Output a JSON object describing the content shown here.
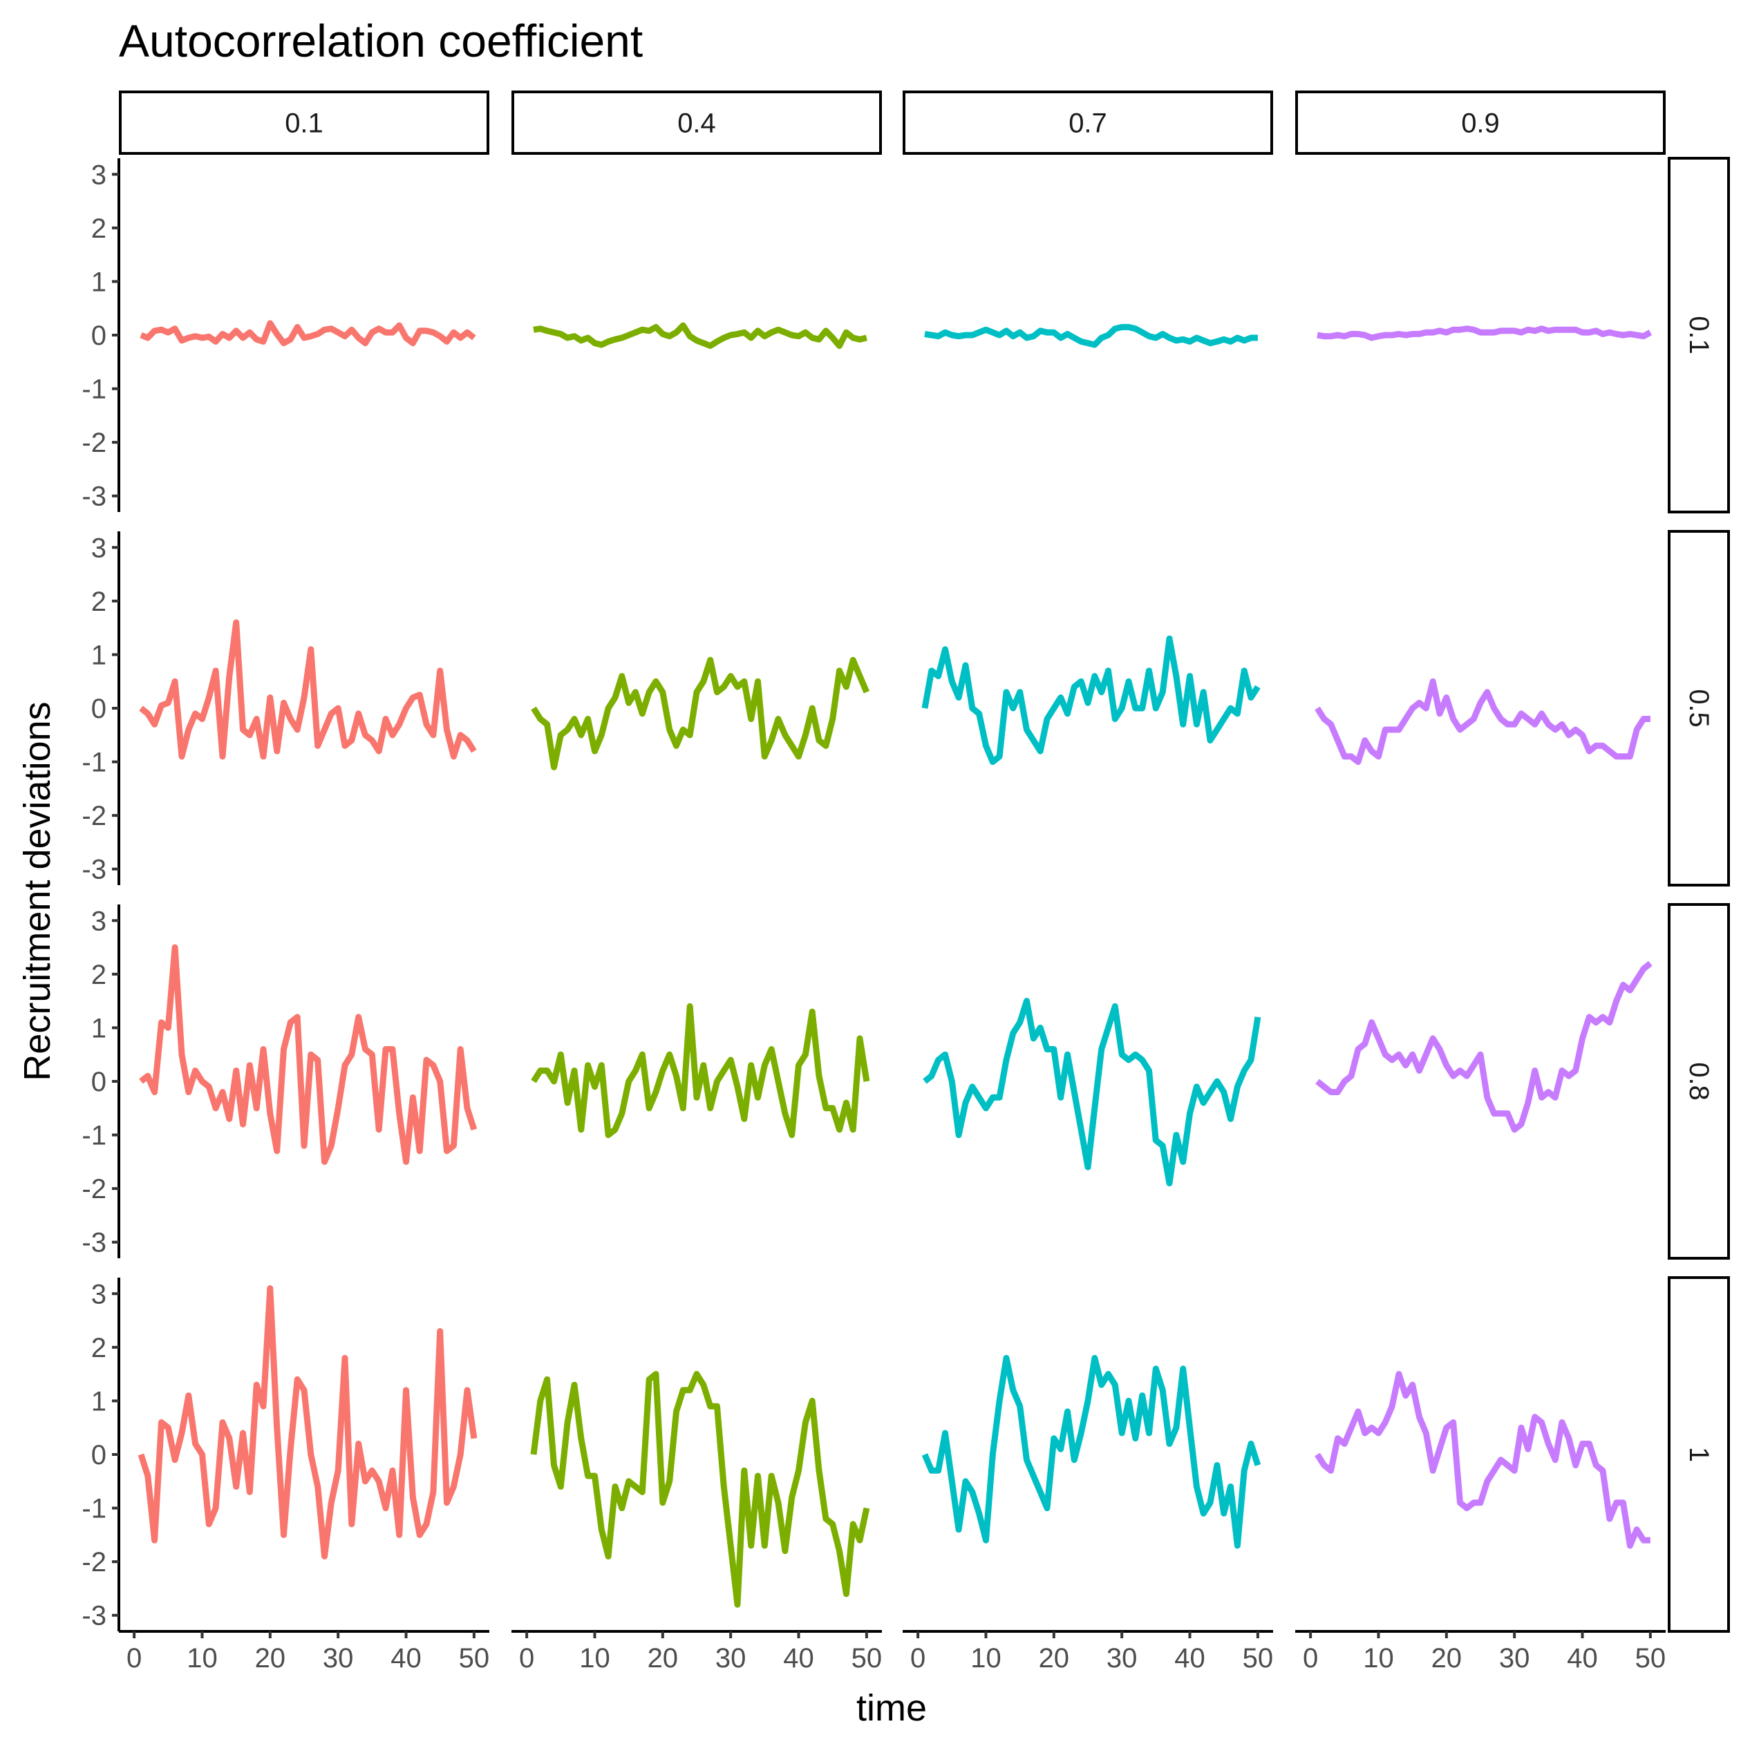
{
  "chart_data": {
    "type": "line",
    "title": "Autocorrelation coefficient",
    "xlabel": "time",
    "ylabel": "Recruitment deviations",
    "xlim": [
      0,
      50
    ],
    "ylim": [
      -3,
      3
    ],
    "x_ticks": [
      "0",
      "10",
      "20",
      "30",
      "40",
      "50"
    ],
    "y_ticks": [
      "-3",
      "-2",
      "-1",
      "0",
      "1",
      "2",
      "3"
    ],
    "column_facet_labels": [
      "0.1",
      "0.4",
      "0.7",
      "0.9"
    ],
    "row_facet_labels": [
      "0.1",
      "0.5",
      "0.8",
      "1"
    ],
    "column_colors": [
      "#F8766D",
      "#7CAE00",
      "#00BFC4",
      "#C77CFF"
    ],
    "legend": "none",
    "grid": false,
    "x": [
      1,
      2,
      3,
      4,
      5,
      6,
      7,
      8,
      9,
      10,
      11,
      12,
      13,
      14,
      15,
      16,
      17,
      18,
      19,
      20,
      21,
      22,
      23,
      24,
      25,
      26,
      27,
      28,
      29,
      30,
      31,
      32,
      33,
      34,
      35,
      36,
      37,
      38,
      39,
      40,
      41,
      42,
      43,
      44,
      45,
      46,
      47,
      48,
      49,
      50
    ],
    "panels": [
      {
        "row": "0.1",
        "col": "0.1",
        "values": [
          0.0,
          -0.05,
          0.08,
          0.1,
          0.05,
          0.12,
          -0.1,
          -0.05,
          -0.02,
          -0.05,
          -0.03,
          -0.12,
          0.02,
          -0.05,
          0.08,
          -0.05,
          0.05,
          -0.08,
          -0.12,
          0.22,
          0.02,
          -0.15,
          -0.08,
          0.15,
          -0.05,
          -0.02,
          0.02,
          0.1,
          0.12,
          0.05,
          -0.02,
          0.1,
          -0.05,
          -0.15,
          0.05,
          0.12,
          0.05,
          0.05,
          0.18,
          -0.05,
          -0.15,
          0.08,
          0.08,
          0.05,
          -0.02,
          -0.12,
          0.05,
          -0.05,
          0.05,
          -0.05
        ]
      },
      {
        "row": "0.1",
        "col": "0.4",
        "values": [
          0.1,
          0.12,
          0.08,
          0.05,
          0.02,
          -0.05,
          -0.02,
          -0.1,
          -0.05,
          -0.15,
          -0.18,
          -0.12,
          -0.08,
          -0.05,
          0.0,
          0.05,
          0.1,
          0.08,
          0.15,
          0.02,
          -0.02,
          0.05,
          0.18,
          -0.02,
          -0.1,
          -0.15,
          -0.2,
          -0.12,
          -0.05,
          0.0,
          0.02,
          0.05,
          -0.05,
          0.08,
          -0.02,
          0.05,
          0.1,
          0.05,
          0.0,
          -0.02,
          0.05,
          -0.05,
          -0.08,
          0.08,
          -0.05,
          -0.2,
          0.05,
          -0.05,
          -0.08,
          -0.05
        ]
      },
      {
        "row": "0.1",
        "col": "0.7",
        "values": [
          0.02,
          0.0,
          -0.02,
          0.05,
          0.0,
          -0.02,
          0.0,
          0.0,
          0.05,
          0.1,
          0.05,
          0.0,
          0.08,
          -0.02,
          0.05,
          -0.05,
          -0.02,
          0.08,
          0.05,
          0.05,
          -0.05,
          0.02,
          -0.05,
          -0.12,
          -0.15,
          -0.18,
          -0.05,
          0.0,
          0.12,
          0.15,
          0.15,
          0.12,
          0.05,
          -0.02,
          -0.05,
          0.02,
          -0.05,
          -0.1,
          -0.08,
          -0.12,
          -0.05,
          -0.1,
          -0.15,
          -0.12,
          -0.08,
          -0.12,
          -0.05,
          -0.1,
          -0.05,
          -0.05
        ]
      },
      {
        "row": "0.1",
        "col": "0.9",
        "values": [
          0.0,
          -0.02,
          -0.02,
          0.0,
          -0.02,
          0.02,
          0.02,
          0.0,
          -0.05,
          -0.02,
          0.0,
          0.0,
          0.02,
          0.0,
          0.02,
          0.02,
          0.05,
          0.05,
          0.08,
          0.05,
          0.1,
          0.1,
          0.12,
          0.1,
          0.05,
          0.05,
          0.05,
          0.08,
          0.08,
          0.08,
          0.05,
          0.1,
          0.08,
          0.12,
          0.08,
          0.1,
          0.1,
          0.1,
          0.1,
          0.05,
          0.05,
          0.08,
          0.02,
          0.05,
          0.02,
          0.0,
          0.02,
          0.0,
          -0.02,
          0.05
        ]
      },
      {
        "row": "0.5",
        "col": "0.1",
        "values": [
          0.0,
          -0.1,
          -0.3,
          0.05,
          0.1,
          0.5,
          -0.9,
          -0.4,
          -0.1,
          -0.2,
          0.2,
          0.7,
          -0.9,
          0.6,
          1.6,
          -0.4,
          -0.5,
          -0.2,
          -0.9,
          0.2,
          -0.8,
          0.1,
          -0.2,
          -0.4,
          0.2,
          1.1,
          -0.7,
          -0.4,
          -0.1,
          0.0,
          -0.7,
          -0.6,
          -0.1,
          -0.5,
          -0.6,
          -0.8,
          -0.2,
          -0.5,
          -0.3,
          0.0,
          0.2,
          0.25,
          -0.3,
          -0.5,
          0.7,
          -0.4,
          -0.9,
          -0.5,
          -0.6,
          -0.8
        ]
      },
      {
        "row": "0.5",
        "col": "0.4",
        "values": [
          0.0,
          -0.2,
          -0.3,
          -1.1,
          -0.5,
          -0.4,
          -0.2,
          -0.5,
          -0.2,
          -0.8,
          -0.5,
          0.0,
          0.2,
          0.6,
          0.1,
          0.3,
          -0.1,
          0.3,
          0.5,
          0.3,
          -0.4,
          -0.7,
          -0.4,
          -0.5,
          0.3,
          0.5,
          0.9,
          0.3,
          0.4,
          0.6,
          0.4,
          0.5,
          -0.2,
          0.5,
          -0.9,
          -0.6,
          -0.2,
          -0.5,
          -0.7,
          -0.9,
          -0.5,
          0.0,
          -0.6,
          -0.7,
          -0.2,
          0.7,
          0.4,
          0.9,
          0.6,
          0.3
        ]
      },
      {
        "row": "0.5",
        "col": "0.7",
        "values": [
          0.0,
          0.7,
          0.6,
          1.1,
          0.5,
          0.2,
          0.8,
          0.0,
          -0.1,
          -0.7,
          -1.0,
          -0.9,
          0.3,
          0.0,
          0.3,
          -0.4,
          -0.6,
          -0.8,
          -0.2,
          0.0,
          0.2,
          -0.1,
          0.4,
          0.5,
          0.1,
          0.6,
          0.3,
          0.7,
          -0.2,
          0.0,
          0.5,
          0.0,
          0.0,
          0.7,
          0.0,
          0.3,
          1.3,
          0.6,
          -0.3,
          0.6,
          -0.3,
          0.3,
          -0.6,
          -0.4,
          -0.2,
          0.0,
          -0.1,
          0.7,
          0.2,
          0.4
        ]
      },
      {
        "row": "0.5",
        "col": "0.9",
        "values": [
          0.0,
          -0.2,
          -0.3,
          -0.6,
          -0.9,
          -0.9,
          -1.0,
          -0.6,
          -0.8,
          -0.9,
          -0.4,
          -0.4,
          -0.4,
          -0.2,
          0.0,
          0.1,
          0.0,
          0.5,
          -0.1,
          0.2,
          -0.2,
          -0.4,
          -0.3,
          -0.2,
          0.1,
          0.3,
          0.0,
          -0.2,
          -0.3,
          -0.3,
          -0.1,
          -0.2,
          -0.3,
          -0.1,
          -0.3,
          -0.4,
          -0.3,
          -0.5,
          -0.4,
          -0.5,
          -0.8,
          -0.7,
          -0.7,
          -0.8,
          -0.9,
          -0.9,
          -0.9,
          -0.4,
          -0.2,
          -0.2
        ]
      },
      {
        "row": "0.8",
        "col": "0.1",
        "values": [
          0.0,
          0.1,
          -0.2,
          1.1,
          1.0,
          2.5,
          0.5,
          -0.2,
          0.2,
          0.0,
          -0.1,
          -0.5,
          -0.2,
          -0.7,
          0.2,
          -0.8,
          0.3,
          -0.5,
          0.6,
          -0.6,
          -1.3,
          0.6,
          1.1,
          1.2,
          -1.2,
          0.5,
          0.4,
          -1.5,
          -1.2,
          -0.5,
          0.3,
          0.5,
          1.2,
          0.6,
          0.5,
          -0.9,
          0.6,
          0.6,
          -0.6,
          -1.5,
          -0.3,
          -1.3,
          0.4,
          0.3,
          0.0,
          -1.3,
          -1.2,
          0.6,
          -0.5,
          -0.9
        ]
      },
      {
        "row": "0.8",
        "col": "0.4",
        "values": [
          0.0,
          0.2,
          0.2,
          0.0,
          0.5,
          -0.4,
          0.2,
          -0.9,
          0.3,
          -0.1,
          0.3,
          -1.0,
          -0.9,
          -0.6,
          0.0,
          0.2,
          0.5,
          -0.5,
          -0.2,
          0.2,
          0.5,
          0.1,
          -0.5,
          1.4,
          -0.3,
          0.3,
          -0.5,
          0.0,
          0.2,
          0.4,
          -0.1,
          -0.7,
          0.3,
          -0.3,
          0.3,
          0.6,
          0.0,
          -0.6,
          -1.0,
          0.3,
          0.5,
          1.3,
          0.1,
          -0.5,
          -0.5,
          -0.9,
          -0.4,
          -0.9,
          0.8,
          0.0
        ]
      },
      {
        "row": "0.8",
        "col": "0.7",
        "values": [
          0.0,
          0.1,
          0.4,
          0.5,
          0.0,
          -1.0,
          -0.4,
          -0.1,
          -0.3,
          -0.5,
          -0.3,
          -0.3,
          0.4,
          0.9,
          1.1,
          1.5,
          0.8,
          1.0,
          0.6,
          0.6,
          -0.3,
          0.5,
          -0.2,
          -0.9,
          -1.6,
          -0.5,
          0.6,
          1.0,
          1.4,
          0.5,
          0.4,
          0.5,
          0.4,
          0.2,
          -1.1,
          -1.2,
          -1.9,
          -1.0,
          -1.5,
          -0.6,
          -0.1,
          -0.4,
          -0.2,
          0.0,
          -0.2,
          -0.7,
          -0.1,
          0.2,
          0.4,
          1.2
        ]
      },
      {
        "row": "0.8",
        "col": "0.9",
        "values": [
          0.0,
          -0.1,
          -0.2,
          -0.2,
          0.0,
          0.1,
          0.6,
          0.7,
          1.1,
          0.8,
          0.5,
          0.4,
          0.5,
          0.3,
          0.5,
          0.2,
          0.5,
          0.8,
          0.6,
          0.3,
          0.1,
          0.2,
          0.1,
          0.3,
          0.5,
          -0.3,
          -0.6,
          -0.6,
          -0.6,
          -0.9,
          -0.8,
          -0.4,
          0.2,
          -0.3,
          -0.2,
          -0.3,
          0.2,
          0.1,
          0.2,
          0.8,
          1.2,
          1.1,
          1.2,
          1.1,
          1.5,
          1.8,
          1.7,
          1.9,
          2.1,
          2.2
        ]
      },
      {
        "row": "1",
        "col": "0.1",
        "values": [
          0.0,
          -0.4,
          -1.6,
          0.6,
          0.5,
          -0.1,
          0.4,
          1.1,
          0.2,
          0.0,
          -1.3,
          -1.0,
          0.6,
          0.3,
          -0.6,
          0.4,
          -0.7,
          1.3,
          0.9,
          3.1,
          0.5,
          -1.5,
          0.1,
          1.4,
          1.2,
          0.0,
          -0.6,
          -1.9,
          -0.9,
          -0.3,
          1.8,
          -1.3,
          0.2,
          -0.5,
          -0.3,
          -0.5,
          -1.0,
          -0.3,
          -1.5,
          1.2,
          -0.8,
          -1.5,
          -1.3,
          -0.7,
          2.3,
          -0.9,
          -0.6,
          0.0,
          1.2,
          0.3
        ]
      },
      {
        "row": "1",
        "col": "0.4",
        "values": [
          0.0,
          1.0,
          1.4,
          -0.2,
          -0.6,
          0.6,
          1.3,
          0.3,
          -0.4,
          -0.4,
          -1.4,
          -1.9,
          -0.6,
          -1.0,
          -0.5,
          -0.6,
          -0.7,
          1.4,
          1.5,
          -0.9,
          -0.5,
          0.8,
          1.2,
          1.2,
          1.5,
          1.3,
          0.9,
          0.9,
          -0.6,
          -1.7,
          -2.8,
          -0.3,
          -1.7,
          -0.4,
          -1.7,
          -0.4,
          -0.9,
          -1.8,
          -0.8,
          -0.3,
          0.6,
          1.0,
          -0.3,
          -1.2,
          -1.3,
          -1.8,
          -2.6,
          -1.3,
          -1.6,
          -1.0
        ]
      },
      {
        "row": "1",
        "col": "0.7",
        "values": [
          0.0,
          -0.3,
          -0.3,
          0.4,
          -0.5,
          -1.4,
          -0.5,
          -0.7,
          -1.1,
          -1.6,
          0.0,
          1.0,
          1.8,
          1.2,
          0.9,
          -0.1,
          -0.4,
          -0.7,
          -1.0,
          0.3,
          0.1,
          0.8,
          -0.1,
          0.4,
          1.0,
          1.8,
          1.3,
          1.5,
          1.3,
          0.4,
          1.0,
          0.3,
          1.1,
          0.4,
          1.6,
          1.2,
          0.2,
          0.5,
          1.6,
          0.5,
          -0.6,
          -1.1,
          -0.9,
          -0.2,
          -1.1,
          -0.6,
          -1.7,
          -0.3,
          0.2,
          -0.2
        ]
      },
      {
        "row": "1",
        "col": "0.9",
        "values": [
          0.0,
          -0.2,
          -0.3,
          0.3,
          0.2,
          0.5,
          0.8,
          0.4,
          0.5,
          0.4,
          0.6,
          0.9,
          1.5,
          1.1,
          1.3,
          0.7,
          0.4,
          -0.3,
          0.1,
          0.5,
          0.6,
          -0.9,
          -1.0,
          -0.9,
          -0.9,
          -0.5,
          -0.3,
          -0.1,
          -0.2,
          -0.3,
          0.5,
          0.1,
          0.7,
          0.6,
          0.2,
          -0.1,
          0.6,
          0.3,
          -0.2,
          0.2,
          0.2,
          -0.2,
          -0.3,
          -1.2,
          -0.9,
          -0.9,
          -1.7,
          -1.4,
          -1.6,
          -1.6
        ]
      }
    ]
  }
}
